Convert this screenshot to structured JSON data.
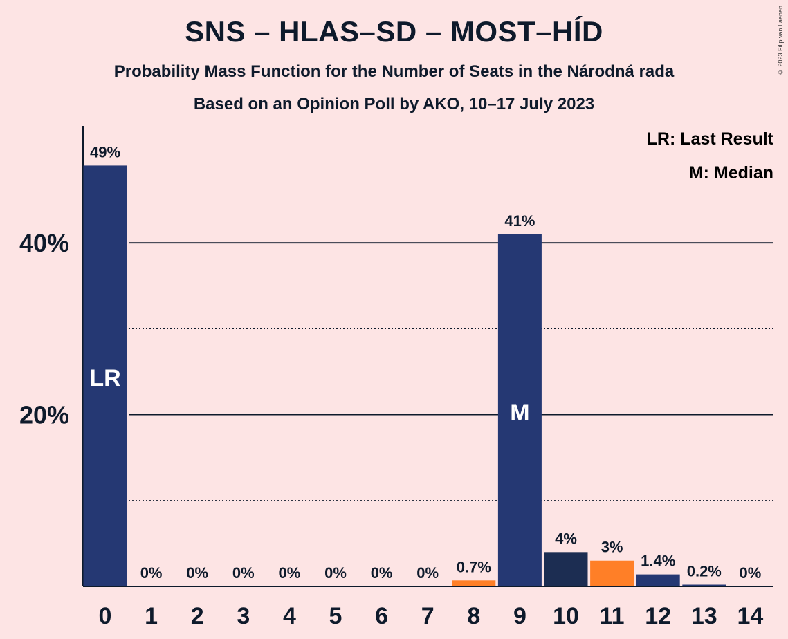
{
  "title": "SNS – HLAS–SD – MOST–HÍD",
  "subtitle": "Probability Mass Function for the Number of Seats in the Národná rada",
  "subtitle2": "Based on an Opinion Poll by AKO, 10–17 July 2023",
  "copyright": "© 2023 Filip van Laenen",
  "legend": {
    "last_result": "LR: Last Result",
    "median": "M: Median"
  },
  "colors": {
    "background": "#fde4e4",
    "bar_main": "#253873",
    "bar_dark": "#1c2d52",
    "bar_orange": "#ff7f27",
    "text": "#0e1a2b"
  },
  "chart_data": {
    "type": "bar",
    "categories": [
      "0",
      "1",
      "2",
      "3",
      "4",
      "5",
      "6",
      "7",
      "8",
      "9",
      "10",
      "11",
      "12",
      "13",
      "14"
    ],
    "values": [
      49,
      0,
      0,
      0,
      0,
      0,
      0,
      0,
      0.7,
      41,
      4,
      3,
      1.4,
      0.2,
      0
    ],
    "value_labels": [
      "49%",
      "0%",
      "0%",
      "0%",
      "0%",
      "0%",
      "0%",
      "0%",
      "0.7%",
      "41%",
      "4%",
      "3%",
      "1.4%",
      "0.2%",
      "0%"
    ],
    "bar_colors": [
      "#253873",
      "#253873",
      "#253873",
      "#253873",
      "#253873",
      "#253873",
      "#253873",
      "#253873",
      "#ff7f27",
      "#253873",
      "#1c2d52",
      "#ff7f27",
      "#253873",
      "#253873",
      "#253873"
    ],
    "inner_labels": {
      "0": "LR",
      "9": "M"
    },
    "ylim": [
      0,
      52
    ],
    "yticks": [
      {
        "value": 10,
        "label": "",
        "style": "dotted"
      },
      {
        "value": 20,
        "label": "20%",
        "style": "solid"
      },
      {
        "value": 30,
        "label": "",
        "style": "dotted"
      },
      {
        "value": 40,
        "label": "40%",
        "style": "solid"
      }
    ],
    "grid": true,
    "legend_position": "top-right"
  }
}
